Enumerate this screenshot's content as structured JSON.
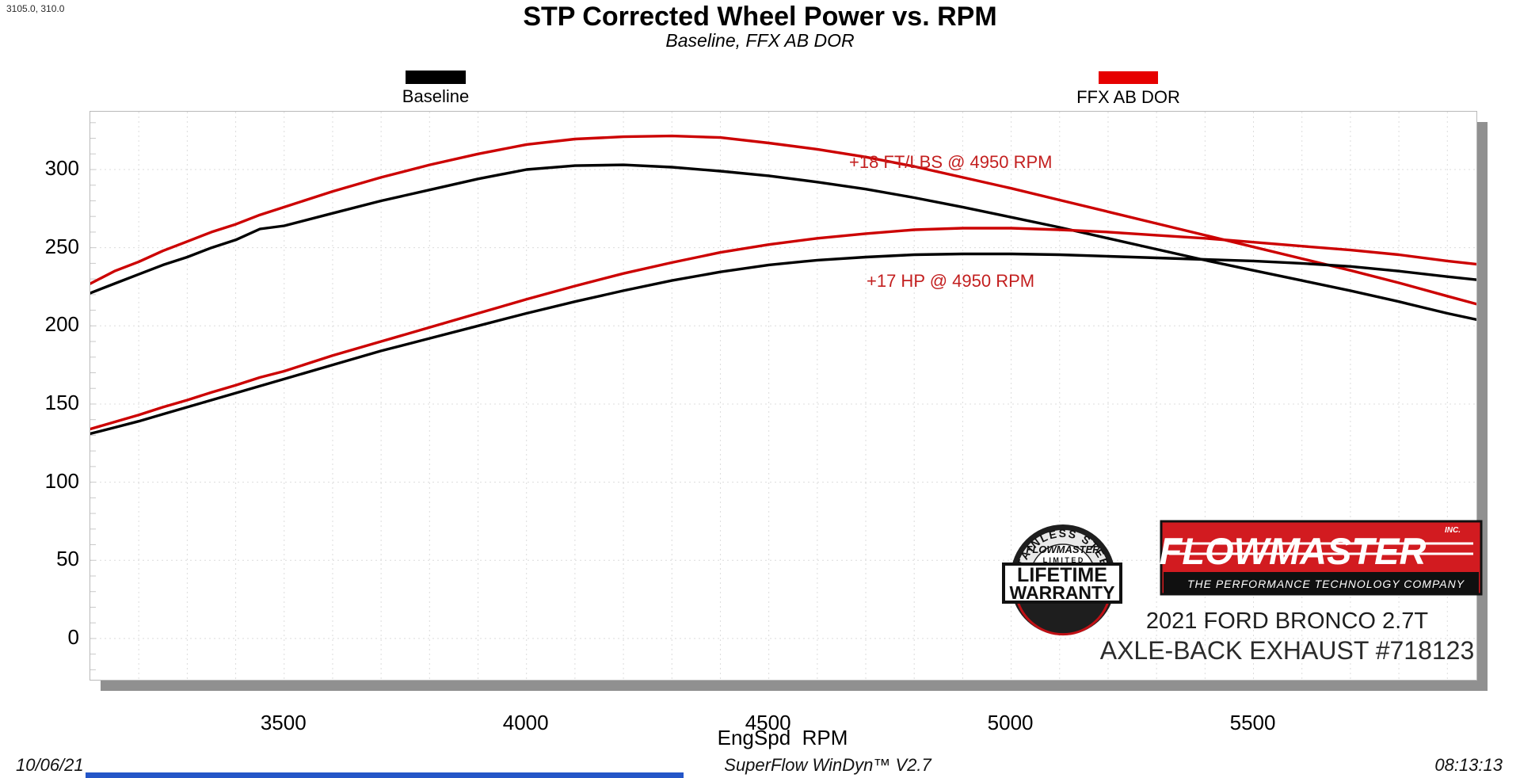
{
  "cursor_readout": "3105.0, 310.0",
  "title": "STP Corrected Wheel Power vs. RPM",
  "subtitle": "Baseline, FFX AB DOR",
  "legend": [
    {
      "label": "Baseline",
      "color": "#000000"
    },
    {
      "label": "FFX AB DOR",
      "color": "#e60000"
    }
  ],
  "annotations": [
    {
      "text": "+18 FT/LBS @ 4950 RPM",
      "color": "#c31f1f"
    },
    {
      "text": "+17 HP @ 4950 RPM",
      "color": "#c31f1f"
    }
  ],
  "branding": {
    "badge": {
      "arc_text": "STAINLESS STEEL",
      "brand": "FLOWMASTER",
      "limited": "L I M I T E D",
      "banner_line1": "LIFETIME",
      "banner_line2": "WARRANTY"
    },
    "logo": {
      "name": "FLOWMASTER",
      "inc": "INC.",
      "tagline": "THE PERFORMANCE TECHNOLOGY COMPANY"
    },
    "vehicle_line1": "2021 FORD BRONCO 2.7T",
    "vehicle_line2": "AXLE-BACK EXHAUST #718123"
  },
  "footer": {
    "date": "10/06/21",
    "software": "SuperFlow WinDyn™ V2.7",
    "time": "08:13:13"
  },
  "chart_data": {
    "type": "line",
    "title": "STP Corrected Wheel Power vs. RPM",
    "subtitle": "Baseline, FFX AB DOR",
    "xlabel": "EngSpd  RPM",
    "ylabel": "",
    "x_range": [
      3100,
      5960
    ],
    "y_range": [
      -26.4,
      337
    ],
    "x_ticks": [
      3500,
      4000,
      4500,
      5000,
      5500
    ],
    "y_ticks": [
      0,
      50,
      100,
      150,
      200,
      250,
      300
    ],
    "grid": {
      "x_start": 3200,
      "x_end": 5900,
      "x_step": 100,
      "y_start": 0,
      "y_end": 300,
      "y_step": 50,
      "color": "#dcdcdc",
      "style": "dashed"
    },
    "legend_position": "top",
    "rpm": [
      3100,
      3150,
      3200,
      3250,
      3300,
      3350,
      3400,
      3450,
      3500,
      3600,
      3700,
      3800,
      3900,
      4000,
      4100,
      4200,
      4300,
      4400,
      4500,
      4600,
      4700,
      4800,
      4900,
      5000,
      5100,
      5200,
      5300,
      5400,
      5500,
      5600,
      5700,
      5800,
      5900,
      5960
    ],
    "series": [
      {
        "name": "Baseline Torque (ft-lbs)",
        "color": "#000000",
        "values": [
          221,
          227,
          233,
          239,
          244,
          250,
          255,
          262,
          264,
          272,
          280,
          287,
          294,
          300,
          302.5,
          303,
          301.5,
          299,
          296,
          292,
          287.5,
          282,
          276,
          269.5,
          263,
          256,
          249,
          242,
          235.5,
          229,
          222.5,
          215.5,
          208,
          204
        ]
      },
      {
        "name": "FFX AB DOR Torque (ft-lbs)",
        "color": "#cc0000",
        "values": [
          227,
          235,
          241,
          248,
          254,
          260,
          265,
          271,
          276,
          286,
          295,
          303,
          310,
          316,
          319.5,
          321,
          321.5,
          320.5,
          317,
          313,
          308,
          302,
          295,
          288,
          280.5,
          273,
          265.5,
          258,
          250.5,
          243,
          235.5,
          227.5,
          219,
          214
        ]
      },
      {
        "name": "Baseline Power (HP)",
        "color": "#000000",
        "values": [
          131,
          135,
          139,
          143.5,
          148,
          152.5,
          157,
          161.5,
          166,
          175,
          184,
          192,
          200,
          208,
          215.5,
          222.5,
          229,
          234.5,
          239,
          242,
          244,
          245.5,
          246,
          246,
          245.5,
          244.5,
          243.5,
          242.5,
          241.5,
          240,
          238,
          235,
          231.5,
          229.5
        ]
      },
      {
        "name": "FFX AB DOR Power (HP)",
        "color": "#cc0000",
        "values": [
          134,
          138.5,
          143,
          148,
          152.5,
          157.5,
          162,
          167,
          171,
          181,
          190,
          199,
          208,
          217,
          225.5,
          233.5,
          240.5,
          247,
          252,
          256,
          259,
          261.5,
          262.5,
          262.5,
          261.5,
          260,
          258,
          256,
          253.5,
          251,
          248.5,
          245.5,
          241.5,
          239.5
        ]
      }
    ],
    "gains_annotations": [
      {
        "text": "+18 FT/LBS @ 4950 RPM",
        "at_rpm": 4950
      },
      {
        "text": "+17 HP @ 4950 RPM",
        "at_rpm": 4950
      }
    ]
  }
}
